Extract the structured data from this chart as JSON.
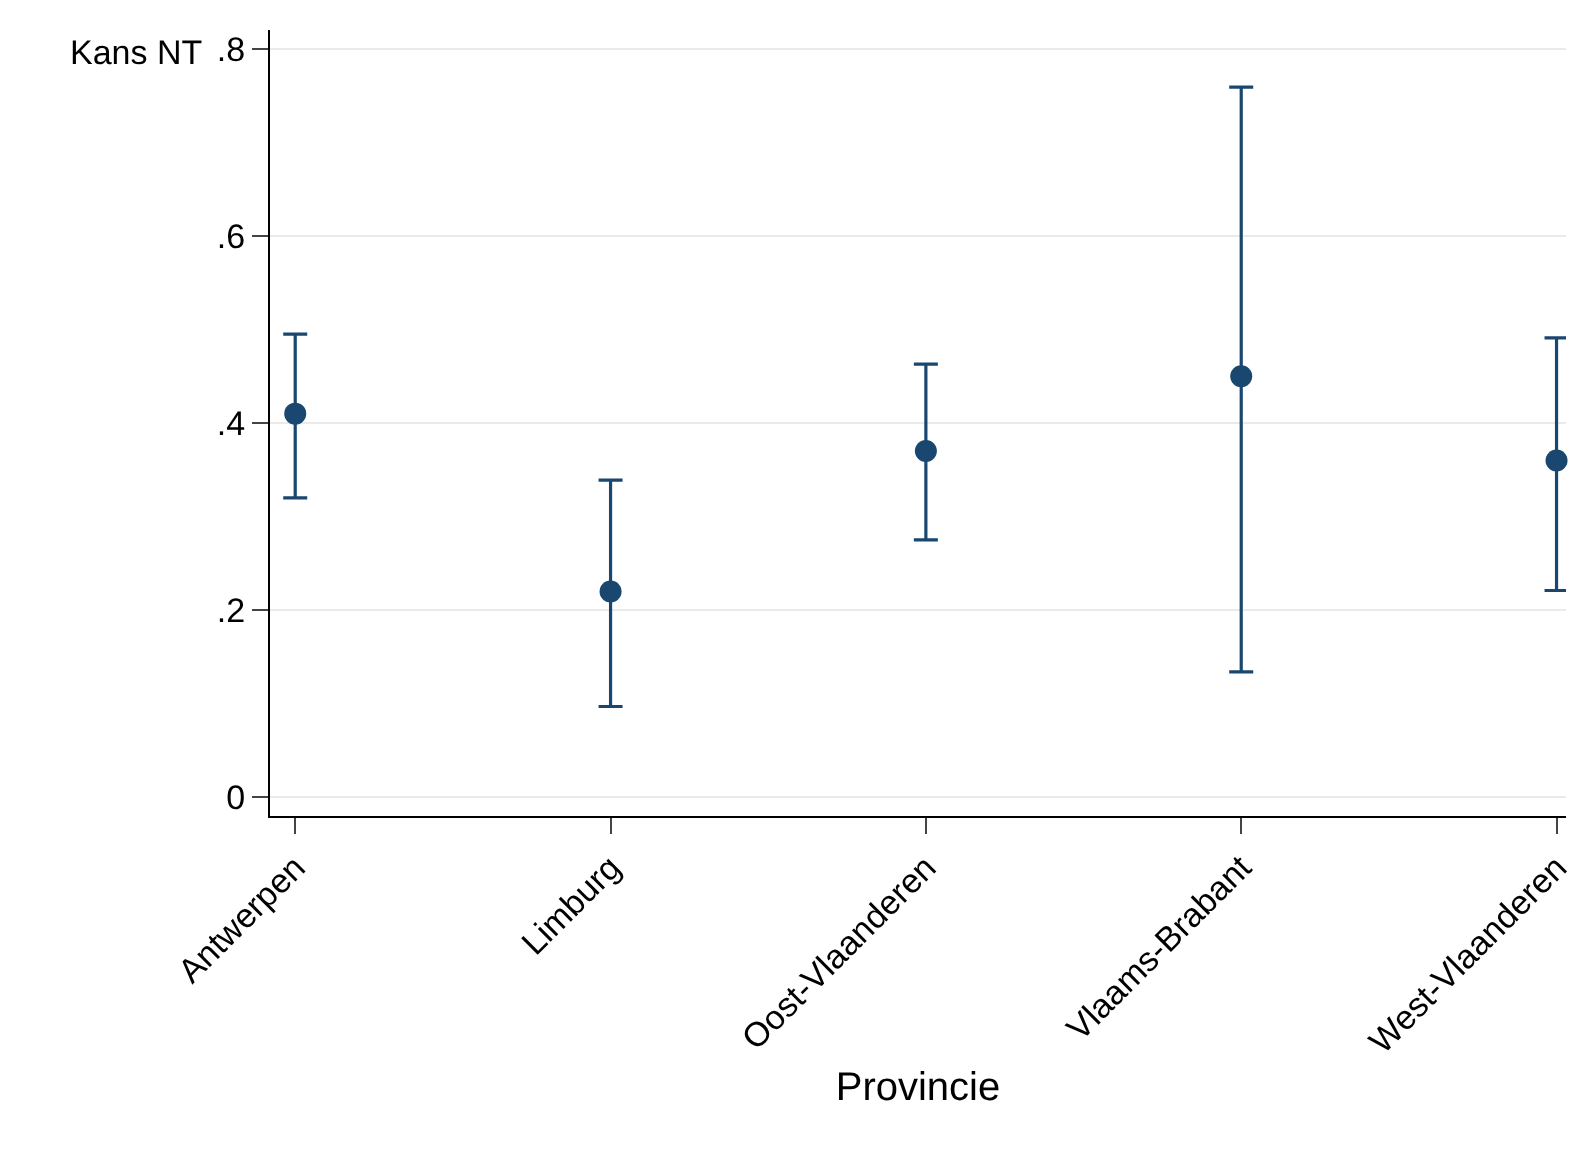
{
  "chart_data": {
    "type": "scatter",
    "xlabel": "Provincie",
    "ylabel": "Kans NT",
    "categories": [
      "Antwerpen",
      "Limburg",
      "Oost-Vlaanderen",
      "Vlaams-Brabant",
      "West-Vlaanderen"
    ],
    "series": [
      {
        "color": "#1a476f",
        "values": [
          0.41,
          0.22,
          0.37,
          0.45,
          0.36
        ],
        "errors": [
          [
            0.32,
            0.495
          ],
          [
            0.097,
            0.339
          ],
          [
            0.275,
            0.463
          ],
          [
            0.134,
            0.759
          ],
          [
            0.221,
            0.491
          ]
        ]
      }
    ],
    "ylim": [
      -0.02,
      0.82
    ],
    "yticks": [
      0,
      {
        "value": 0.2,
        "label": ".2"
      },
      {
        "value": 0.4,
        "label": ".4"
      },
      {
        "value": 0.6,
        "label": ".6"
      },
      {
        "value": 0.8,
        "label": ".8"
      }
    ],
    "grid": "y",
    "marker": "circle"
  }
}
